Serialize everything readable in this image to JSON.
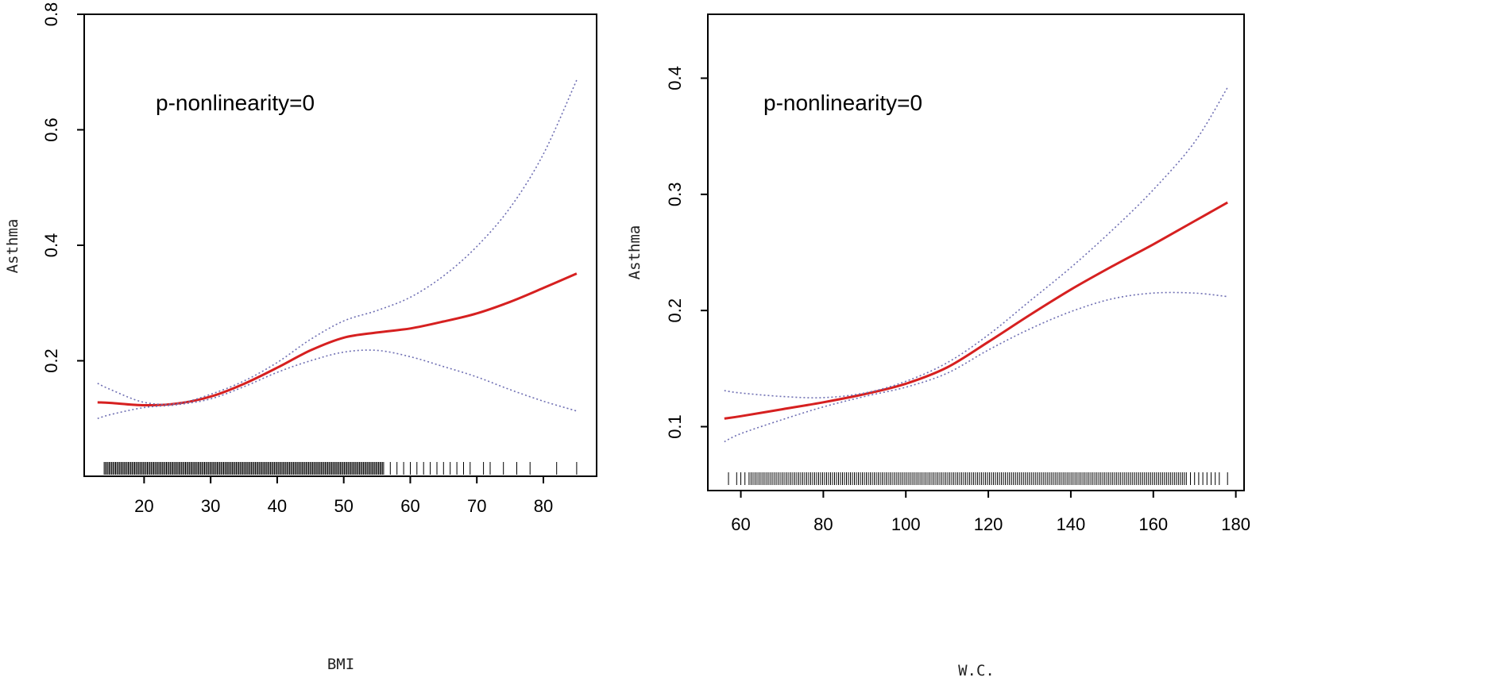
{
  "chart_data": [
    {
      "type": "line",
      "xlabel": "BMI",
      "ylabel": "Asthma",
      "annotation": "p-nonlinearity=0",
      "xlim": [
        11,
        88
      ],
      "ylim": [
        0,
        0.8
      ],
      "xticks": [
        20,
        30,
        40,
        50,
        60,
        70,
        80
      ],
      "yticks": [
        0.2,
        0.4,
        0.6,
        0.8
      ],
      "x": [
        13,
        15,
        20,
        25,
        30,
        35,
        40,
        45,
        50,
        55,
        60,
        65,
        70,
        75,
        80,
        85
      ],
      "series": [
        {
          "role": "estimate",
          "color": "#d62020",
          "values": [
            0.128,
            0.127,
            0.123,
            0.126,
            0.138,
            0.16,
            0.188,
            0.218,
            0.24,
            0.249,
            0.256,
            0.268,
            0.282,
            0.302,
            0.326,
            0.351
          ]
        },
        {
          "role": "upper",
          "color": "#6f6fb3",
          "values": [
            0.161,
            0.15,
            0.128,
            0.126,
            0.142,
            0.165,
            0.197,
            0.237,
            0.269,
            0.287,
            0.31,
            0.347,
            0.398,
            0.465,
            0.558,
            0.686
          ]
        },
        {
          "role": "lower",
          "color": "#6f6fb3",
          "values": [
            0.1,
            0.107,
            0.119,
            0.124,
            0.134,
            0.155,
            0.18,
            0.2,
            0.215,
            0.218,
            0.207,
            0.19,
            0.172,
            0.15,
            0.13,
            0.113
          ]
        }
      ],
      "rug": {
        "dense_from": 14,
        "dense_to": 56,
        "sparse": [
          57,
          58,
          59,
          60,
          61,
          62,
          63,
          64,
          65,
          66,
          67,
          68,
          69,
          71,
          72,
          74,
          76,
          78,
          82,
          85
        ]
      }
    },
    {
      "type": "line",
      "xlabel": "W.C.",
      "ylabel": "Asthma",
      "annotation": "p-nonlinearity=0",
      "xlim": [
        52,
        182
      ],
      "ylim": [
        0.045,
        0.455
      ],
      "xticks": [
        60,
        80,
        100,
        120,
        140,
        160,
        180
      ],
      "yticks": [
        0.1,
        0.2,
        0.3,
        0.4
      ],
      "x": [
        56,
        60,
        70,
        80,
        90,
        100,
        110,
        120,
        130,
        140,
        150,
        160,
        170,
        178
      ],
      "series": [
        {
          "role": "estimate",
          "color": "#d62020",
          "values": [
            0.107,
            0.109,
            0.115,
            0.121,
            0.128,
            0.137,
            0.151,
            0.173,
            0.196,
            0.218,
            0.238,
            0.257,
            0.277,
            0.293
          ]
        },
        {
          "role": "upper",
          "color": "#6f6fb3",
          "values": [
            0.131,
            0.129,
            0.126,
            0.125,
            0.129,
            0.139,
            0.155,
            0.179,
            0.208,
            0.237,
            0.269,
            0.304,
            0.345,
            0.392
          ]
        },
        {
          "role": "lower",
          "color": "#6f6fb3",
          "values": [
            0.087,
            0.094,
            0.106,
            0.117,
            0.126,
            0.134,
            0.146,
            0.166,
            0.184,
            0.199,
            0.21,
            0.215,
            0.215,
            0.212
          ]
        }
      ],
      "rug": {
        "dense_from": 62,
        "dense_to": 168,
        "sparse": [
          57,
          59,
          60,
          61,
          169,
          170,
          171,
          172,
          173,
          174,
          175,
          176,
          178
        ]
      }
    }
  ]
}
